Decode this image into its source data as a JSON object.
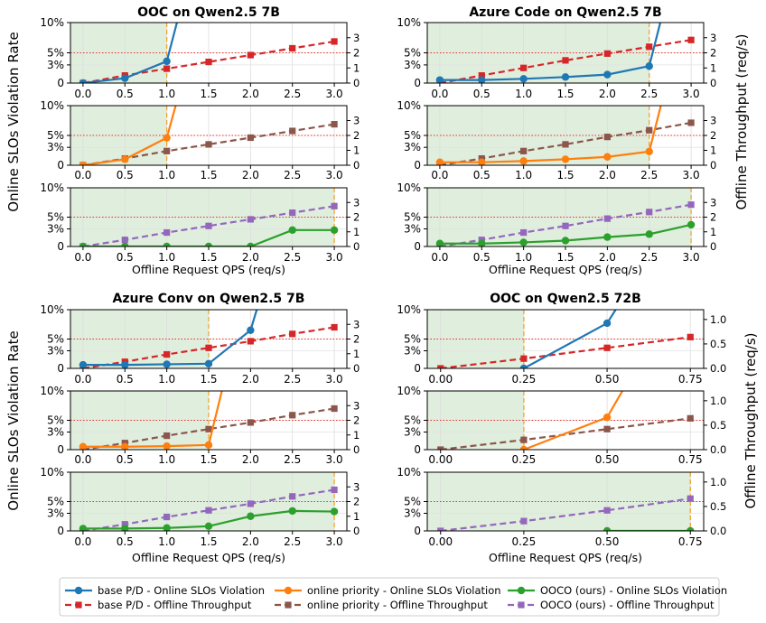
{
  "figure": {
    "ylabel_left": "Online SLOs Violation Rate",
    "ylabel_right": "Offline Throughput (req/s)",
    "xlabel": "Offline Request QPS (req/s)"
  },
  "legend": [
    {
      "method": "base P/D",
      "metric": "violation",
      "label": "base P/D - Online SLOs Violation"
    },
    {
      "method": "online priority",
      "metric": "violation",
      "label": "online priority - Online SLOs Violation"
    },
    {
      "method": "OOCO",
      "metric": "violation",
      "label": "OOCO (ours) - Online SLOs Violation"
    },
    {
      "method": "base P/D",
      "metric": "throughput",
      "label": "base P/D - Offline Throughput"
    },
    {
      "method": "online priority",
      "metric": "throughput",
      "label": "online priority - Offline Throughput"
    },
    {
      "method": "OOCO",
      "metric": "throughput",
      "label": "OOCO (ours) - Offline Throughput"
    }
  ],
  "colors": {
    "base_violation": "#1f77b4",
    "base_throughput": "#d62728",
    "online_violation": "#ff7f0e",
    "online_throughput": "#8c564b",
    "ooco_violation": "#2ca02c",
    "ooco_throughput": "#9467bd",
    "slo_line": "#e8322b",
    "boundary_line": "#f0a020",
    "safe_region": "#d4e8d2"
  },
  "chart_data": [
    {
      "type": "line",
      "title": "OOC on Qwen2.5 7B",
      "x": [
        0.0,
        0.5,
        1.0,
        1.5,
        2.0,
        2.5,
        3.0
      ],
      "x_ticks": [
        "0.0",
        "0.5",
        "1.0",
        "1.5",
        "2.0",
        "2.5",
        "3.0"
      ],
      "xlim": [
        -0.15,
        3.15
      ],
      "ylim_left": [
        0,
        10
      ],
      "left_ticks": [
        "0",
        "3%",
        "5%",
        "10%"
      ],
      "left_tick_values": [
        0,
        3,
        5,
        10
      ],
      "ylim_right": [
        0,
        4.0
      ],
      "right_ticks": [
        "0",
        "1",
        "2",
        "3"
      ],
      "right_tick_values": [
        0,
        1,
        2,
        3
      ],
      "slo_threshold": 5,
      "xlabel": "Offline Request QPS (req/s)",
      "panels": [
        {
          "method": "base P/D",
          "violation": [
            0,
            0.8,
            3.6,
            30,
            null,
            null,
            null
          ],
          "throughput": [
            0,
            0.5,
            0.95,
            1.4,
            1.85,
            2.3,
            2.75
          ],
          "safe_max_qps": 1.0
        },
        {
          "method": "online priority",
          "violation": [
            0,
            1.0,
            4.6,
            30,
            null,
            null,
            null
          ],
          "throughput": [
            0,
            0.45,
            0.95,
            1.4,
            1.85,
            2.3,
            2.75
          ],
          "safe_max_qps": 1.0
        },
        {
          "method": "OOCO",
          "violation": [
            0,
            0,
            0,
            0,
            0,
            2.8,
            2.8
          ],
          "throughput": [
            0,
            0.45,
            0.95,
            1.4,
            1.85,
            2.3,
            2.75
          ],
          "safe_max_qps": 3.0
        }
      ]
    },
    {
      "type": "line",
      "title": "Azure Code on Qwen2.5 7B",
      "x": [
        0.0,
        0.5,
        1.0,
        1.5,
        2.0,
        2.5,
        3.0
      ],
      "x_ticks": [
        "0.0",
        "0.5",
        "1.0",
        "1.5",
        "2.0",
        "2.5",
        "3.0"
      ],
      "xlim": [
        -0.15,
        3.15
      ],
      "ylim_left": [
        0,
        10
      ],
      "left_ticks": [
        "0",
        "3%",
        "5%",
        "10%"
      ],
      "left_tick_values": [
        0,
        3,
        5,
        10
      ],
      "ylim_right": [
        0,
        4.0
      ],
      "right_ticks": [
        "0",
        "1",
        "2",
        "3"
      ],
      "right_tick_values": [
        0,
        1,
        2,
        3
      ],
      "slo_threshold": 5,
      "xlabel": "Offline Request QPS (req/s)",
      "panels": [
        {
          "method": "base P/D",
          "violation": [
            0.5,
            0.5,
            0.7,
            1.0,
            1.4,
            2.8,
            30
          ],
          "throughput": [
            0,
            0.5,
            1.0,
            1.5,
            1.95,
            2.4,
            2.85
          ],
          "safe_max_qps": 2.5
        },
        {
          "method": "online priority",
          "violation": [
            0.5,
            0.5,
            0.7,
            1.0,
            1.4,
            2.3,
            30
          ],
          "throughput": [
            0,
            0.45,
            0.95,
            1.4,
            1.9,
            2.35,
            2.85
          ],
          "safe_max_qps": 2.5
        },
        {
          "method": "OOCO",
          "violation": [
            0.5,
            0.5,
            0.7,
            1.0,
            1.6,
            2.1,
            3.7
          ],
          "throughput": [
            0,
            0.45,
            0.95,
            1.4,
            1.9,
            2.35,
            2.85
          ],
          "safe_max_qps": 3.0
        }
      ]
    },
    {
      "type": "line",
      "title": "Azure Conv on Qwen2.5 7B",
      "x": [
        0.0,
        0.5,
        1.0,
        1.5,
        2.0,
        2.5,
        3.0
      ],
      "x_ticks": [
        "0.0",
        "0.5",
        "1.0",
        "1.5",
        "2.0",
        "2.5",
        "3.0"
      ],
      "xlim": [
        -0.15,
        3.15
      ],
      "ylim_left": [
        0,
        10
      ],
      "left_ticks": [
        "0",
        "3%",
        "5%",
        "10%"
      ],
      "left_tick_values": [
        0,
        3,
        5,
        10
      ],
      "ylim_right": [
        0,
        4.0
      ],
      "right_ticks": [
        "0",
        "1",
        "2",
        "3"
      ],
      "right_tick_values": [
        0,
        1,
        2,
        3
      ],
      "slo_threshold": 5,
      "xlabel": "Offline Request QPS (req/s)",
      "panels": [
        {
          "method": "base P/D",
          "violation": [
            0.6,
            0.6,
            0.7,
            0.8,
            6.5,
            30,
            null
          ],
          "throughput": [
            0,
            0.45,
            0.95,
            1.4,
            1.85,
            2.35,
            2.8
          ],
          "safe_max_qps": 1.5
        },
        {
          "method": "online priority",
          "violation": [
            0.5,
            0.5,
            0.6,
            0.8,
            30,
            null,
            null
          ],
          "throughput": [
            0,
            0.45,
            0.95,
            1.4,
            1.85,
            2.35,
            2.8
          ],
          "safe_max_qps": 1.5
        },
        {
          "method": "OOCO",
          "violation": [
            0.4,
            0.4,
            0.5,
            0.8,
            2.5,
            3.4,
            3.3
          ],
          "throughput": [
            0,
            0.45,
            0.95,
            1.4,
            1.85,
            2.35,
            2.8
          ],
          "safe_max_qps": 3.0
        }
      ]
    },
    {
      "type": "line",
      "title": "OOC on Qwen2.5 72B",
      "x": [
        0.0,
        0.25,
        0.5,
        0.75
      ],
      "x_ticks": [
        "0.00",
        "0.25",
        "0.50",
        "0.75"
      ],
      "xlim": [
        -0.04,
        0.79
      ],
      "ylim_left": [
        0,
        10
      ],
      "left_ticks": [
        "0",
        "3%",
        "5%",
        "10%"
      ],
      "left_tick_values": [
        0,
        3,
        5,
        10
      ],
      "ylim_right": [
        0,
        1.2
      ],
      "right_ticks": [
        "0.0",
        "0.5",
        "1.0"
      ],
      "right_tick_values": [
        0,
        0.5,
        1.0
      ],
      "slo_threshold": 5,
      "xlabel": "Offline Request QPS (req/s)",
      "panels": [
        {
          "method": "base P/D",
          "violation": [
            null,
            0,
            7.7,
            30
          ],
          "throughput": [
            0,
            0.2,
            0.42,
            0.64
          ],
          "safe_max_qps": 0.25
        },
        {
          "method": "online priority",
          "violation": [
            null,
            0,
            5.5,
            30
          ],
          "throughput": [
            0,
            0.2,
            0.42,
            0.64
          ],
          "safe_max_qps": 0.25
        },
        {
          "method": "OOCO",
          "violation": [
            null,
            null,
            0,
            0
          ],
          "throughput": [
            0,
            0.2,
            0.42,
            0.66
          ],
          "safe_max_qps": 0.75
        }
      ]
    }
  ]
}
